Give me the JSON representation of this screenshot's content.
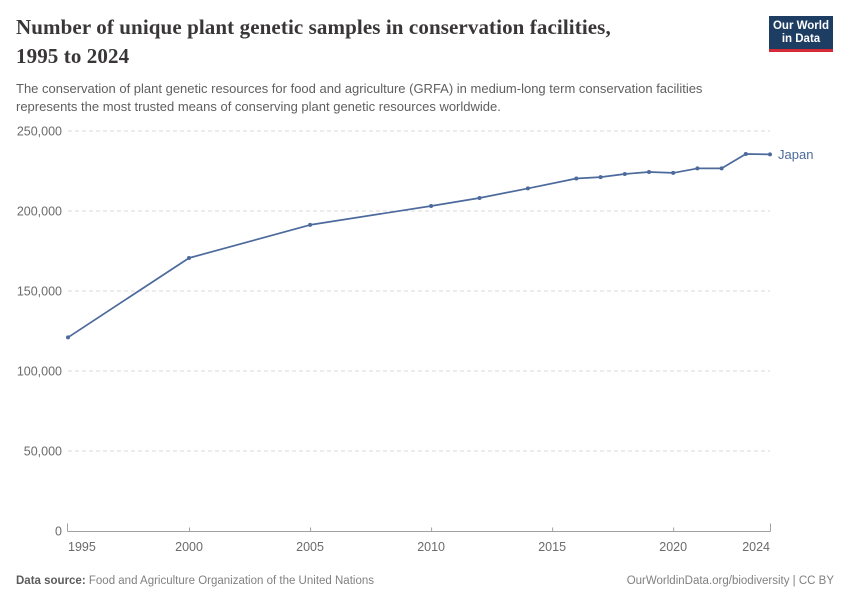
{
  "header": {
    "title_lines": [
      "Number of unique plant genetic samples in conservation facilities,",
      "1995 to 2024"
    ],
    "subtitle": "The conservation of plant genetic resources for food and agriculture (GRFA) in medium-long term conservation facilities represents the most trusted means of conserving plant genetic resources worldwide.",
    "logo": {
      "line1": "Our World",
      "line2": "in Data",
      "bg_color": "#1d3d63",
      "bar_color": "#d42b36"
    }
  },
  "chart_data": {
    "type": "line",
    "title": "Number of unique plant genetic samples in conservation facilities, 1995 to 2024",
    "xlabel": "",
    "ylabel": "",
    "xlim": [
      1995,
      2024
    ],
    "ylim": [
      0,
      250000
    ],
    "x_ticks": [
      1995,
      2000,
      2005,
      2010,
      2015,
      2020,
      2024
    ],
    "y_ticks": [
      0,
      50000,
      100000,
      150000,
      200000,
      250000
    ],
    "grid": "horizontal-dashed",
    "legend": "end-of-line-label",
    "axis_color": "#a1a1a1",
    "grid_color": "#d9d9d9",
    "tick_label_color": "#6b6b6b",
    "series": [
      {
        "name": "Japan",
        "color": "#4c6a9c",
        "points": [
          {
            "year": 1995,
            "value": 121000
          },
          {
            "year": 2000,
            "value": 170600
          },
          {
            "year": 2005,
            "value": 191300
          },
          {
            "year": 2010,
            "value": 203100
          },
          {
            "year": 2012,
            "value": 208100
          },
          {
            "year": 2014,
            "value": 214100
          },
          {
            "year": 2016,
            "value": 220300
          },
          {
            "year": 2017,
            "value": 221200
          },
          {
            "year": 2018,
            "value": 223100
          },
          {
            "year": 2019,
            "value": 224400
          },
          {
            "year": 2020,
            "value": 223800
          },
          {
            "year": 2021,
            "value": 226600
          },
          {
            "year": 2022,
            "value": 226600
          },
          {
            "year": 2023,
            "value": 235600
          },
          {
            "year": 2024,
            "value": 235400
          }
        ]
      }
    ]
  },
  "footer": {
    "source_label": "Data source:",
    "source_text": "Food and Agriculture Organization of the United Nations",
    "credit": "OurWorldinData.org/biodiversity | CC BY"
  }
}
